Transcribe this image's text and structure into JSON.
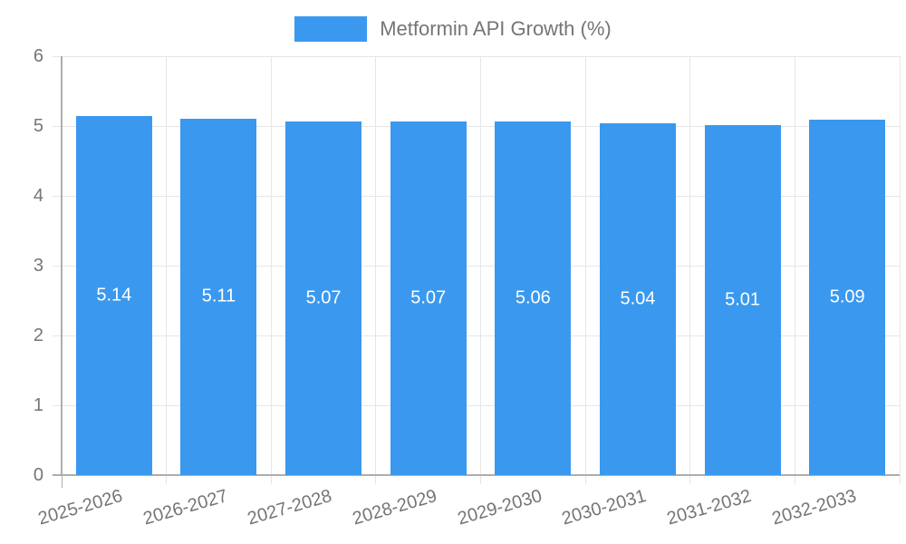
{
  "legend": {
    "label": "Metformin API Growth (%)"
  },
  "colors": {
    "bar": "#3A99EF",
    "grid": "#E6E6E6",
    "axis": "#ADADAD",
    "text": "#757575",
    "value_label": "#FFFFFF",
    "background": "#FFFFFF"
  },
  "chart_data": {
    "type": "bar",
    "title": "Metformin API Growth (%)",
    "categories": [
      "2025-2026",
      "2026-2027",
      "2027-2028",
      "2028-2029",
      "2029-2030",
      "2030-2031",
      "2031-2032",
      "2032-2033"
    ],
    "values": [
      5.14,
      5.11,
      5.07,
      5.07,
      5.06,
      5.04,
      5.01,
      5.09
    ],
    "value_labels": [
      "5.14",
      "5.11",
      "5.07",
      "5.07",
      "5.06",
      "5.04",
      "5.01",
      "5.09"
    ],
    "xlabel": "",
    "ylabel": "",
    "ylim": [
      0,
      6
    ],
    "yticks": [
      0,
      1,
      2,
      3,
      4,
      5,
      6
    ],
    "grid": true,
    "legend_position": "top",
    "bar_label_position": "center"
  }
}
